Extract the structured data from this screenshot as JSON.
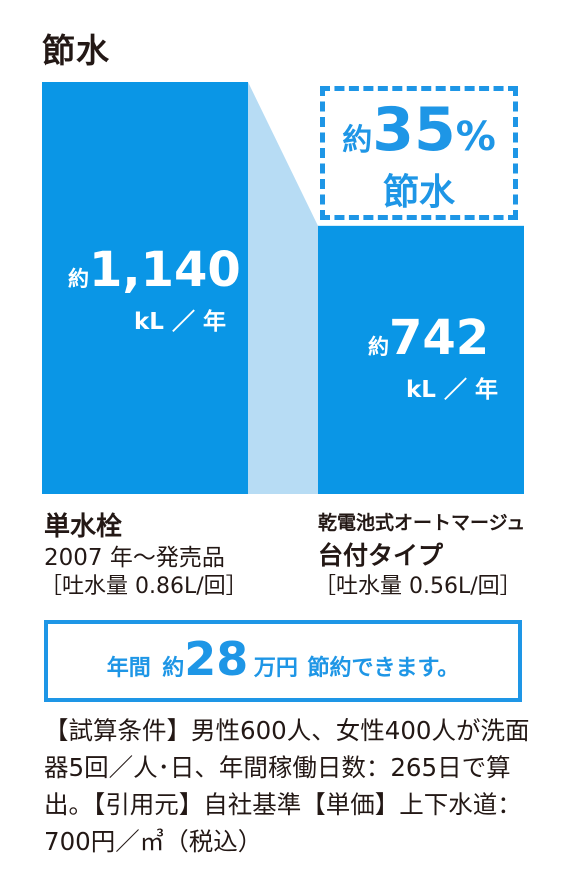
{
  "title": "節水",
  "savings": {
    "prefix": "約",
    "value": "35",
    "unit": "%",
    "label": "節水"
  },
  "chart_data": {
    "type": "bar",
    "ylabel": "",
    "categories": [
      {
        "name": "単水栓",
        "sub1": "2007 年〜発売品",
        "sub2": "［吐水量 0.86L/回］"
      },
      {
        "name": "乾電池式オートマージュ",
        "sub1": "台付タイプ",
        "sub2": "［吐水量 0.56L/回］"
      }
    ],
    "values": [
      1140,
      742
    ],
    "value_labels": [
      {
        "prefix": "約",
        "value": "1,140",
        "unit": "kL ／ 年"
      },
      {
        "prefix": "約",
        "value": "742",
        "unit": "kL ／ 年"
      }
    ],
    "colors": {
      "bar": "#0a96e6",
      "connector": "#b7dcf4",
      "accent": "#1e96e6"
    }
  },
  "annual": {
    "part1": "年間",
    "prefix": "約",
    "value": "28",
    "unit": "万円",
    "suffix": "節約できます。"
  },
  "note": "【試算条件】男性600人、女性400人が洗面器5回／人･日、年間稼働日数：265日で算出。【引用元】自社基準【単価】上下水道：700円／㎥（税込）"
}
